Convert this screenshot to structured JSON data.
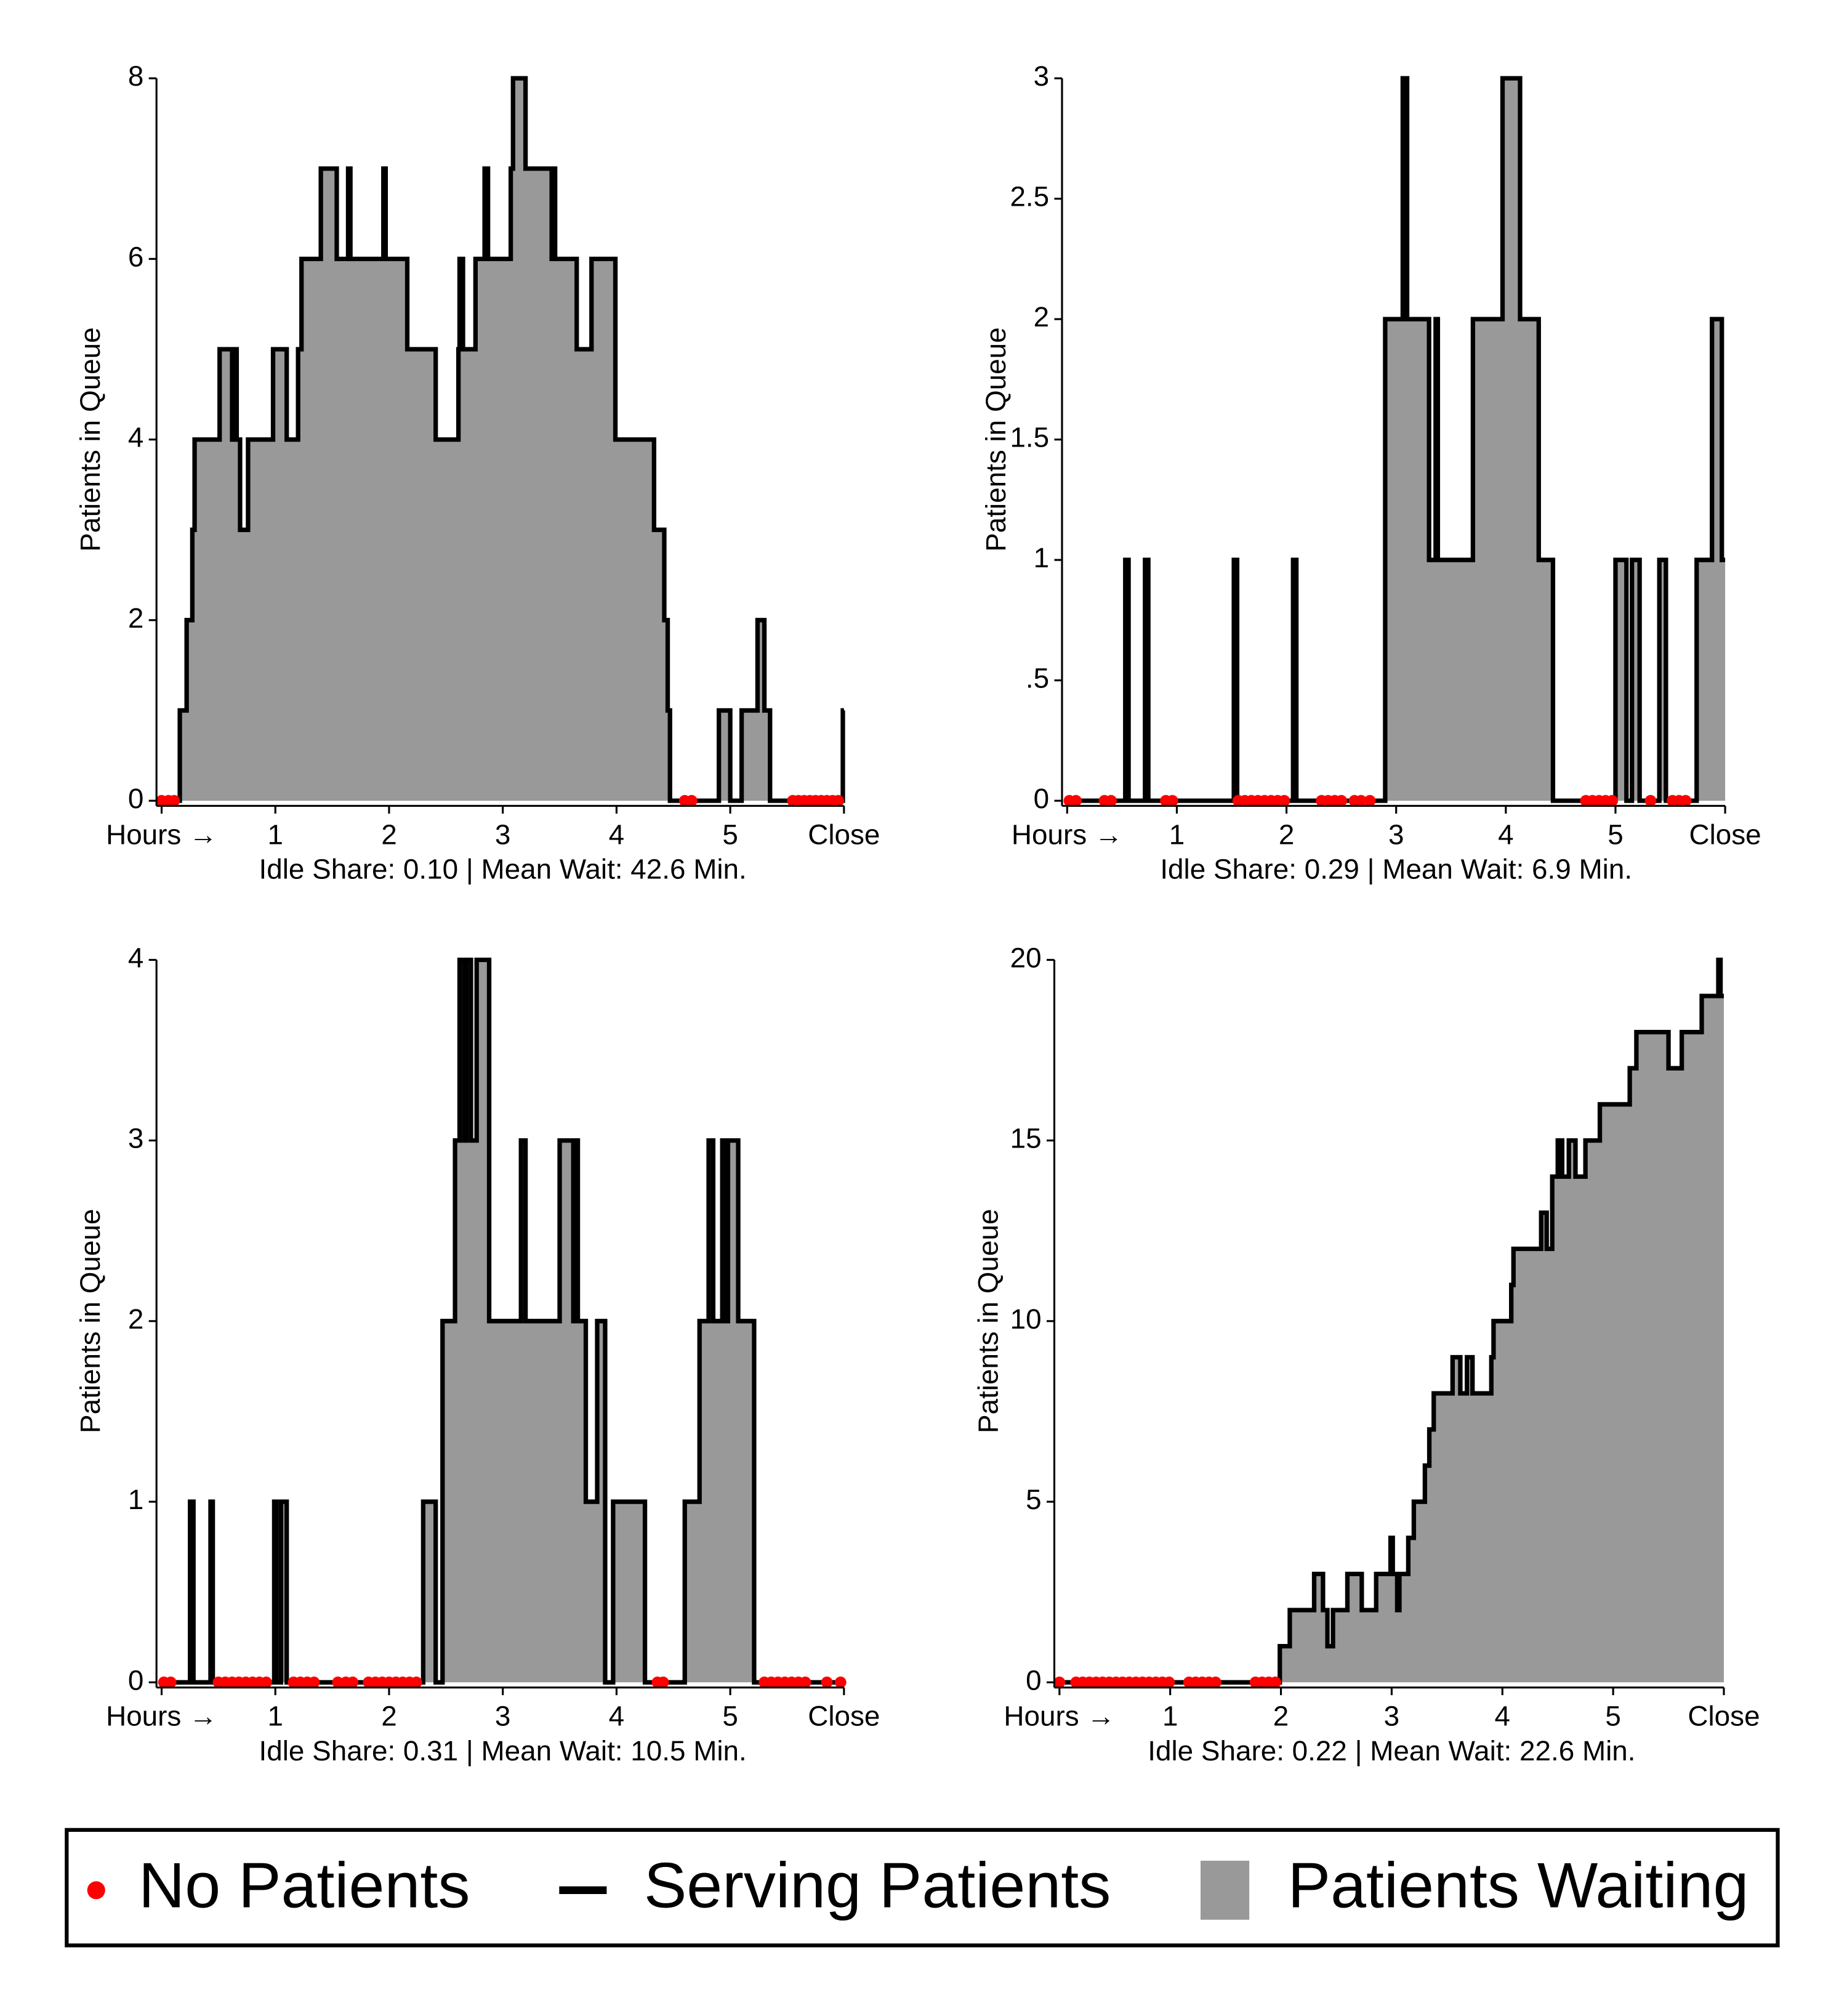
{
  "chart_data": [
    {
      "type": "step-area",
      "ylabel": "Patients in Queue",
      "xlabel": "Idle Share: 0.10 | Mean Wait: 42.6 Min.",
      "xlim": [
        0,
        6
      ],
      "xticks": [
        {
          "value": 0,
          "label": "Hours →"
        },
        1,
        2,
        3,
        4,
        5,
        {
          "value": 6,
          "label": "Close"
        }
      ],
      "ylim": [
        0,
        8
      ],
      "yticks": [
        0,
        2,
        4,
        6,
        8
      ],
      "x": [
        0,
        0.16,
        0.22,
        0.27,
        0.29,
        0.51,
        0.62,
        0.64,
        0.66,
        0.69,
        0.76,
        0.98,
        1.1,
        1.2,
        1.23,
        1.4,
        1.54,
        1.64,
        1.66,
        1.95,
        1.97,
        2.16,
        2.41,
        2.61,
        2.62,
        2.65,
        2.76,
        2.84,
        2.87,
        3.07,
        3.09,
        3.2,
        3.43,
        3.44,
        3.46,
        3.65,
        3.78,
        3.99,
        4.33,
        4.42,
        4.45,
        4.47,
        4.9,
        5.0,
        5.1,
        5.24,
        5.3,
        5.35,
        5.99,
        6
      ],
      "values": [
        0,
        1,
        2,
        3,
        4,
        5,
        4,
        5,
        4,
        3,
        4,
        5,
        4,
        5,
        6,
        7,
        6,
        7,
        6,
        7,
        6,
        5,
        4,
        5,
        6,
        5,
        6,
        7,
        6,
        7,
        8,
        7,
        6,
        7,
        6,
        5,
        6,
        4,
        3,
        2,
        1,
        0,
        1,
        0,
        1,
        2,
        1,
        0,
        1,
        1
      ],
      "idle_x": [
        0,
        0.06,
        0.11,
        4.6,
        4.66,
        5.55,
        5.6,
        5.65,
        5.7,
        5.75,
        5.8,
        5.85,
        5.9,
        5.95
      ]
    },
    {
      "type": "step-area",
      "ylabel": "Patients in Queue",
      "xlabel": "Idle Share: 0.29 | Mean Wait: 6.9 Min.",
      "xlim": [
        0,
        6
      ],
      "xticks": [
        {
          "value": 0,
          "label": "Hours →"
        },
        1,
        2,
        3,
        4,
        5,
        {
          "value": 6,
          "label": "Close"
        }
      ],
      "ylim": [
        0,
        3
      ],
      "yticks": [
        0,
        {
          "value": 0.5,
          "label": ".5"
        },
        1,
        1.5,
        2,
        2.5,
        3
      ],
      "x": [
        0,
        0.53,
        0.56,
        0.71,
        0.74,
        1.52,
        1.55,
        2.06,
        2.09,
        2.9,
        3.06,
        3.1,
        3.3,
        3.36,
        3.38,
        3.7,
        3.97,
        4.13,
        4.3,
        4.43,
        5.0,
        5.1,
        5.15,
        5.22,
        5.4,
        5.46,
        5.74,
        5.88,
        5.97,
        6
      ],
      "values": [
        0,
        1,
        0,
        1,
        0,
        1,
        0,
        1,
        0,
        2,
        3,
        2,
        1,
        2,
        1,
        2,
        3,
        2,
        1,
        0,
        1,
        0,
        1,
        0,
        1,
        0,
        1,
        2,
        1,
        1
      ],
      "idle_x": [
        0.02,
        0.08,
        0.34,
        0.4,
        0.9,
        0.96,
        1.56,
        1.62,
        1.68,
        1.74,
        1.8,
        1.86,
        1.92,
        1.98,
        2.32,
        2.38,
        2.44,
        2.5,
        2.62,
        2.68,
        2.76,
        4.73,
        4.79,
        4.85,
        4.91,
        4.97,
        5.32,
        5.52,
        5.58,
        5.64
      ]
    },
    {
      "type": "step-area",
      "ylabel": "Patients in Queue",
      "xlabel": "Idle Share: 0.31 | Mean Wait: 10.5 Min.",
      "xlim": [
        0,
        6
      ],
      "xticks": [
        {
          "value": 0,
          "label": "Hours →"
        },
        1,
        2,
        3,
        4,
        5,
        {
          "value": 6,
          "label": "Close"
        }
      ],
      "ylim": [
        0,
        4
      ],
      "yticks": [
        0,
        1,
        2,
        3,
        4
      ],
      "x": [
        0,
        0.25,
        0.28,
        0.43,
        0.45,
        0.99,
        1.01,
        1.05,
        1.1,
        2.3,
        2.41,
        2.47,
        2.58,
        2.62,
        2.66,
        2.68,
        2.72,
        2.77,
        2.88,
        3.16,
        3.2,
        3.5,
        3.62,
        3.64,
        3.66,
        3.73,
        3.83,
        3.9,
        3.97,
        4.25,
        4.6,
        4.73,
        4.81,
        4.85,
        4.93,
        4.96,
        4.98,
        5.07,
        5.21,
        6
      ],
      "values": [
        0,
        1,
        0,
        1,
        0,
        1,
        0,
        1,
        0,
        1,
        0,
        2,
        3,
        4,
        3,
        4,
        3,
        4,
        2,
        3,
        2,
        3,
        2,
        3,
        2,
        1,
        2,
        0,
        1,
        0,
        1,
        2,
        3,
        2,
        3,
        2,
        3,
        2,
        0,
        0
      ],
      "idle_x": [
        0.02,
        0.08,
        0.5,
        0.56,
        0.62,
        0.68,
        0.74,
        0.8,
        0.86,
        0.92,
        1.16,
        1.22,
        1.28,
        1.34,
        1.55,
        1.62,
        1.68,
        1.82,
        1.88,
        1.94,
        2.0,
        2.06,
        2.12,
        2.18,
        2.24,
        4.36,
        4.41,
        5.3,
        5.36,
        5.42,
        5.48,
        5.54,
        5.6,
        5.66,
        5.85,
        5.97
      ]
    },
    {
      "type": "step-area",
      "ylabel": "Patients in Queue",
      "xlabel": "Idle Share: 0.22 | Mean Wait: 22.6 Min.",
      "xlim": [
        0,
        6
      ],
      "xticks": [
        {
          "value": 0,
          "label": "Hours →"
        },
        1,
        2,
        3,
        4,
        5,
        {
          "value": 6,
          "label": "Close"
        }
      ],
      "ylim": [
        0,
        20
      ],
      "yticks": [
        0,
        5,
        10,
        15,
        20
      ],
      "x": [
        0,
        1.99,
        2.08,
        2.3,
        2.38,
        2.42,
        2.47,
        2.6,
        2.73,
        2.86,
        2.99,
        3.01,
        3.05,
        3.07,
        3.15,
        3.2,
        3.3,
        3.34,
        3.38,
        3.55,
        3.62,
        3.68,
        3.73,
        3.9,
        3.92,
        4.08,
        4.1,
        4.35,
        4.4,
        4.45,
        4.5,
        4.54,
        4.6,
        4.66,
        4.75,
        4.88,
        5.15,
        5.21,
        5.5,
        5.62,
        5.8,
        5.95,
        5.97,
        6
      ],
      "values": [
        0,
        1,
        2,
        3,
        2,
        1,
        2,
        3,
        2,
        3,
        4,
        3,
        2,
        3,
        4,
        5,
        6,
        7,
        8,
        9,
        8,
        9,
        8,
        9,
        10,
        11,
        12,
        13,
        12,
        14,
        15,
        14,
        15,
        14,
        15,
        16,
        17,
        18,
        17,
        18,
        19,
        20,
        19,
        19
      ],
      "idle_x": [
        0,
        0.15,
        0.21,
        0.27,
        0.33,
        0.39,
        0.45,
        0.51,
        0.57,
        0.63,
        0.69,
        0.75,
        0.81,
        0.87,
        0.93,
        0.99,
        1.17,
        1.23,
        1.29,
        1.35,
        1.41,
        1.77,
        1.83,
        1.89,
        1.95
      ]
    }
  ],
  "legend": {
    "items": [
      {
        "name": "No Patients",
        "color": "#ff0000"
      },
      {
        "name": "Serving Patients",
        "color": "#000000"
      },
      {
        "name": "Patients Waiting",
        "color": "#999999"
      }
    ]
  }
}
